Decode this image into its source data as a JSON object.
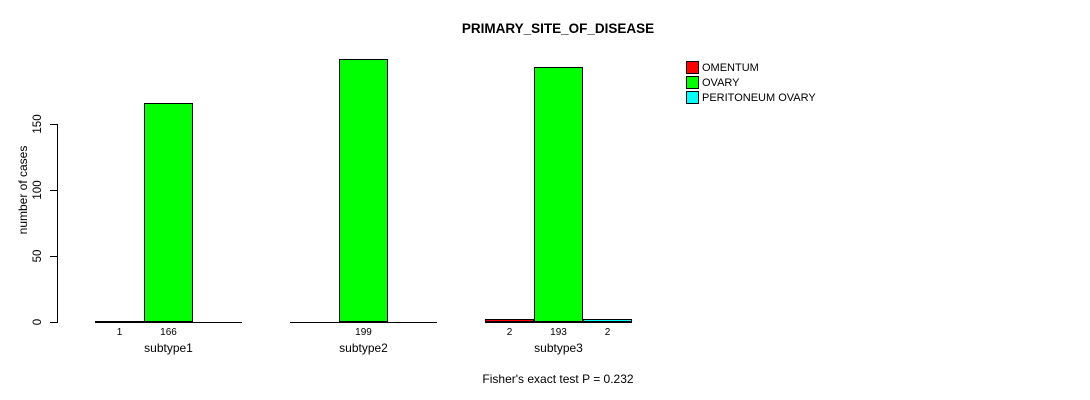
{
  "chart_data": {
    "type": "bar",
    "title": "PRIMARY_SITE_OF_DISEASE",
    "ylabel": "number of cases",
    "xlabel": "",
    "footer": "Fisher's exact test P = 0.232",
    "categories": [
      "subtype1",
      "subtype2",
      "subtype3"
    ],
    "series": [
      {
        "name": "OMENTUM",
        "color": "#ff0000",
        "values": [
          1,
          0,
          2
        ]
      },
      {
        "name": "OVARY",
        "color": "#00ff00",
        "values": [
          166,
          199,
          193
        ]
      },
      {
        "name": "PERITONEUM OVARY",
        "color": "#00ffff",
        "values": [
          0,
          0,
          2
        ]
      }
    ],
    "yticks": [
      0,
      50,
      100,
      150
    ],
    "ylim": [
      0,
      150
    ],
    "grid": false,
    "legend_position": "right",
    "value_labels": "nonzero values shown under bars",
    "colors": {
      "background": "#ffffff",
      "axis": "#000000",
      "text": "#000000"
    }
  }
}
